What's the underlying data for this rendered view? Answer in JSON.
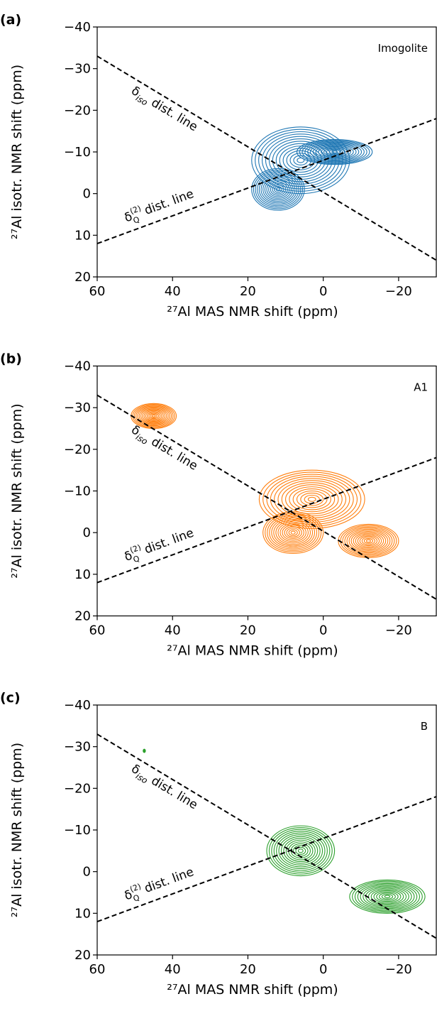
{
  "chart_data": [
    {
      "type": "contour",
      "panel_label": "(a)",
      "annotation": "Imogolite",
      "xlabel": "²⁷Al MAS NMR shift (ppm)",
      "ylabel": "²⁷Al isotr. NMR shift (ppm)",
      "xlim": [
        60,
        -30
      ],
      "ylim": [
        20,
        -40
      ],
      "xticks": [
        60,
        40,
        20,
        0,
        {
          "value": -20,
          "label": "−20"
        }
      ],
      "yticks": [
        {
          "value": -40,
          "label": "−40"
        },
        {
          "value": -30,
          "label": "−30"
        },
        {
          "value": -20,
          "label": "−20"
        },
        {
          "value": -10,
          "label": "−10"
        },
        0,
        10,
        20
      ],
      "color": "#1f77b4",
      "contour_levels": 14,
      "peaks": [
        {
          "x": 6,
          "y": -8,
          "rx": 13,
          "ry": 8
        },
        {
          "x": 12,
          "y": -1,
          "rx": 7,
          "ry": 5
        },
        {
          "x": -3,
          "y": -10,
          "rx": 10,
          "ry": 3
        }
      ],
      "lines": [
        {
          "x": [
            60,
            -30
          ],
          "y": [
            -33,
            16
          ],
          "label": {
            "base": "δ",
            "sub": "iso",
            "rest": " dist. line"
          }
        },
        {
          "x": [
            60,
            -30
          ],
          "y": [
            12,
            -18
          ],
          "label": {
            "base": "δ",
            "sub": "Q",
            "sup": "(2)",
            "rest": " dist. line"
          }
        }
      ]
    },
    {
      "type": "contour",
      "panel_label": "(b)",
      "annotation": "A1",
      "xlabel": "²⁷Al MAS NMR shift (ppm)",
      "ylabel": "²⁷Al isotr. NMR shift (ppm)",
      "xlim": [
        60,
        -30
      ],
      "ylim": [
        20,
        -40
      ],
      "xticks": [
        60,
        40,
        20,
        0,
        {
          "value": -20,
          "label": "−20"
        }
      ],
      "yticks": [
        {
          "value": -40,
          "label": "−40"
        },
        {
          "value": -30,
          "label": "−30"
        },
        {
          "value": -20,
          "label": "−20"
        },
        {
          "value": -10,
          "label": "−10"
        },
        0,
        10,
        20
      ],
      "color": "#ff7f0e",
      "contour_levels": 14,
      "peaks": [
        {
          "x": 45,
          "y": -28,
          "rx": 6,
          "ry": 3
        },
        {
          "x": 3,
          "y": -8,
          "rx": 14,
          "ry": 7
        },
        {
          "x": 8,
          "y": 0,
          "rx": 8,
          "ry": 5
        },
        {
          "x": -12,
          "y": 2,
          "rx": 8,
          "ry": 4
        }
      ],
      "lines": [
        {
          "x": [
            60,
            -30
          ],
          "y": [
            -33,
            16
          ],
          "label": {
            "base": "δ",
            "sub": "iso",
            "rest": " dist. line"
          }
        },
        {
          "x": [
            60,
            -30
          ],
          "y": [
            12,
            -18
          ],
          "label": {
            "base": "δ",
            "sub": "Q",
            "sup": "(2)",
            "rest": " dist. line"
          }
        }
      ]
    },
    {
      "type": "contour",
      "panel_label": "(c)",
      "annotation": "B",
      "xlabel": "²⁷Al MAS NMR shift (ppm)",
      "ylabel": "²⁷Al isotr. NMR shift (ppm)",
      "xlim": [
        60,
        -30
      ],
      "ylim": [
        20,
        -40
      ],
      "xticks": [
        60,
        40,
        20,
        0,
        {
          "value": -20,
          "label": "−20"
        }
      ],
      "yticks": [
        {
          "value": -40,
          "label": "−40"
        },
        {
          "value": -30,
          "label": "−30"
        },
        {
          "value": -20,
          "label": "−20"
        },
        {
          "value": -10,
          "label": "−10"
        },
        0,
        10,
        20
      ],
      "color": "#2ca02c",
      "contour_levels": 14,
      "peaks": [
        {
          "x": 47.5,
          "y": -29,
          "rx": 0.3,
          "ry": 0.4
        },
        {
          "x": 6,
          "y": -5,
          "rx": 9,
          "ry": 6
        },
        {
          "x": -17,
          "y": 6,
          "rx": 10,
          "ry": 4
        }
      ],
      "lines": [
        {
          "x": [
            60,
            -30
          ],
          "y": [
            -33,
            16
          ],
          "label": {
            "base": "δ",
            "sub": "iso",
            "rest": " dist. line"
          }
        },
        {
          "x": [
            60,
            -30
          ],
          "y": [
            12,
            -18
          ],
          "label": {
            "base": "δ",
            "sub": "Q",
            "sup": "(2)",
            "rest": " dist. line"
          }
        }
      ]
    }
  ]
}
